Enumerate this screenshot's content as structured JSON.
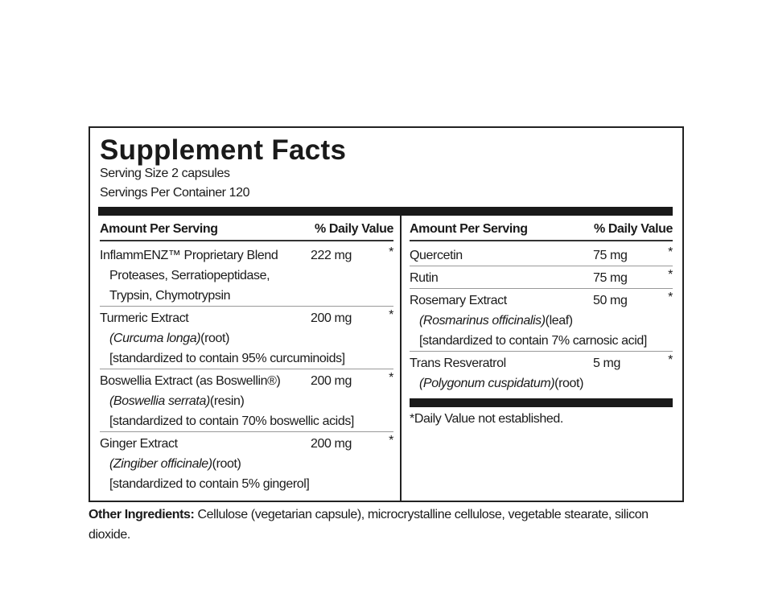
{
  "title": "Supplement Facts",
  "serving_size": "Serving Size 2 capsules",
  "servings_per_container": "Servings Per Container 120",
  "columns": [
    {
      "header": {
        "amount": "Amount Per Serving",
        "dv": "% Daily Value"
      },
      "rows": [
        {
          "name": "InflammENZ™ Proprietary Blend",
          "amount": "222 mg",
          "dv": "*",
          "details": [
            "Proteases, Serratiopeptidase,",
            "Trypsin, Chymotrypsin"
          ]
        },
        {
          "name": "Turmeric Extract",
          "amount": "200 mg",
          "dv": "*",
          "latin": "(Curcuma longa)",
          "part": "(root)",
          "note": "[standardized to contain 95% curcuminoids]"
        },
        {
          "name": "Boswellia Extract (as Boswellin®)",
          "amount": "200 mg",
          "dv": "*",
          "latin": "(Boswellia serrata)",
          "part": "(resin)",
          "note": "[standardized to contain 70% boswellic acids]"
        },
        {
          "name": "Ginger Extract",
          "amount": "200 mg",
          "dv": "*",
          "latin": "(Zingiber officinale)",
          "part": "(root)",
          "note": "[standardized to contain 5% gingerol]"
        }
      ]
    },
    {
      "header": {
        "amount": "Amount Per Serving",
        "dv": "% Daily Value"
      },
      "rows": [
        {
          "name": "Quercetin",
          "amount": "75 mg",
          "dv": "*"
        },
        {
          "name": "Rutin",
          "amount": "75 mg",
          "dv": "*"
        },
        {
          "name": "Rosemary Extract",
          "amount": "50 mg",
          "dv": "*",
          "latin": "(Rosmarinus officinalis)",
          "part": "(leaf)",
          "note": "[standardized to contain 7% carnosic acid]"
        },
        {
          "name": "Trans Resveratrol",
          "amount": "5 mg",
          "dv": "*",
          "latin": "(Polygonum cuspidatum)",
          "part": "(root)"
        }
      ]
    }
  ],
  "footnote": "*Daily Value not established.",
  "other_ingredients": {
    "label": "Other Ingredients:",
    "text": "Cellulose (vegetarian capsule), microcrystalline cellulose, vegetable stearate, silicon dioxide."
  }
}
